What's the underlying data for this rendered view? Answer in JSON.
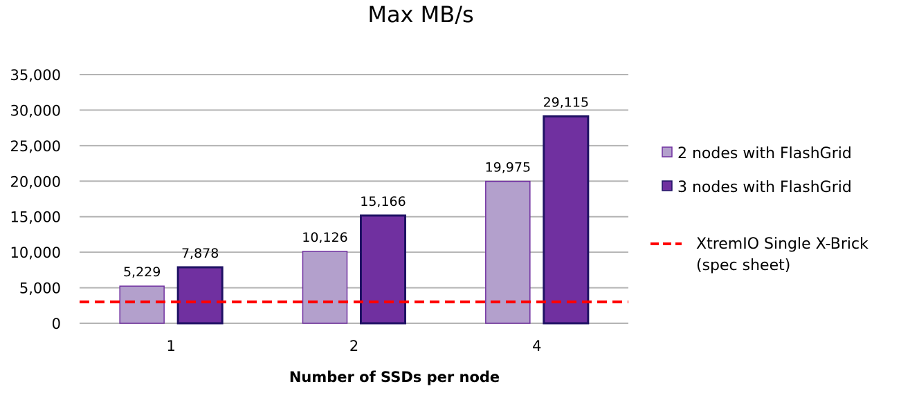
{
  "chart_data": {
    "type": "bar",
    "title": "Max MB/s",
    "xlabel": "Number of SSDs per node",
    "ylabel": "",
    "categories": [
      "1",
      "2",
      "4"
    ],
    "ylim": [
      0,
      35000
    ],
    "yticks": [
      0,
      5000,
      10000,
      15000,
      20000,
      25000,
      30000,
      35000
    ],
    "ytick_labels": [
      "0",
      "5,000",
      "10,000",
      "15,000",
      "20,000",
      "25,000",
      "30,000",
      "35,000"
    ],
    "grid": true,
    "legend_position": "right",
    "series": [
      {
        "name": "2 nodes with FlashGrid",
        "values": [
          5229,
          10126,
          19975
        ],
        "labels": [
          "5,229",
          "10,126",
          "19,975"
        ],
        "color": "#b3a0cc",
        "border": "#7030a0"
      },
      {
        "name": "3 nodes with FlashGrid",
        "values": [
          7878,
          15166,
          29115
        ],
        "labels": [
          "7,878",
          "15,166",
          "29,115"
        ],
        "color": "#7030a0",
        "border": "#1f1264"
      }
    ],
    "reference_lines": [
      {
        "name": "XtremIO Single X-Brick",
        "name_line2": "(spec sheet)",
        "value": 3000,
        "color": "#ff0000",
        "style": "dashed"
      }
    ]
  }
}
